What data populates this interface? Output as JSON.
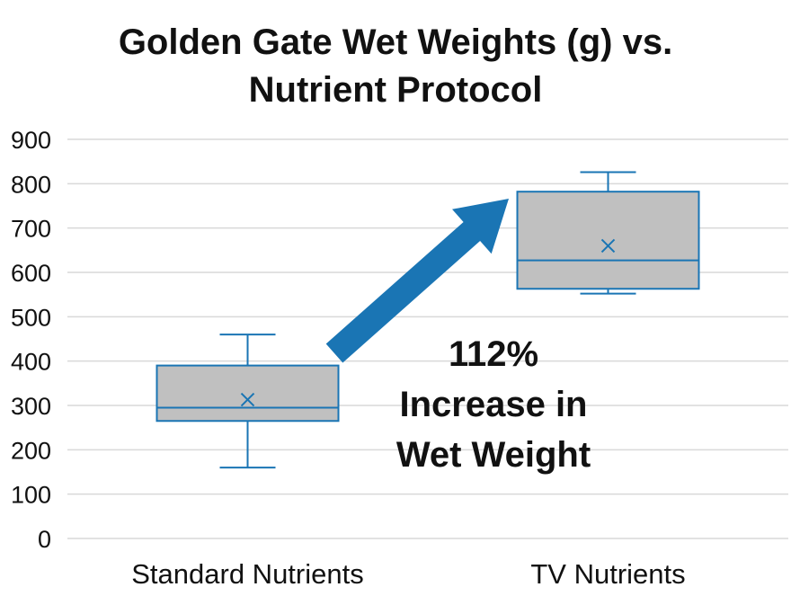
{
  "chart_data": {
    "type": "box",
    "title_lines": [
      "Golden Gate Wet Weights (g) vs.",
      "Nutrient Protocol"
    ],
    "categories": [
      "Standard Nutrients",
      "TV Nutrients"
    ],
    "ylim": [
      0,
      900
    ],
    "yticks": [
      "0",
      "100",
      "200",
      "300",
      "400",
      "500",
      "600",
      "700",
      "800",
      "900"
    ],
    "grid": true,
    "boxes": [
      {
        "category": "Standard Nutrients",
        "min": 160,
        "q1": 265,
        "median": 295,
        "q3": 390,
        "max": 460,
        "mean": 313
      },
      {
        "category": "TV Nutrients",
        "min": 552,
        "q1": 563,
        "median": 627,
        "q3": 782,
        "max": 826,
        "mean": 660
      }
    ],
    "annotation_lines": [
      "112%",
      "Increase in",
      "Wet Weight"
    ],
    "colors": {
      "box_fill": "#c0c0c0",
      "box_stroke": "#1a75b4",
      "arrow": "#1a75b4",
      "grid": "#d9d9d9"
    }
  }
}
